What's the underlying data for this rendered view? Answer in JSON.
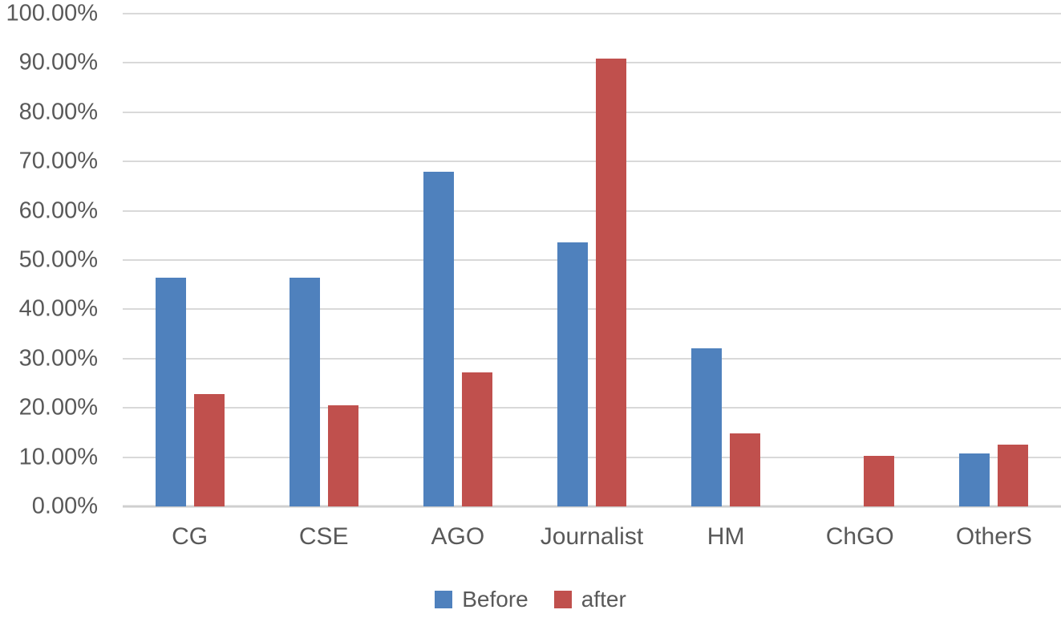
{
  "chart_data": {
    "type": "bar",
    "categories": [
      "CG",
      "CSE",
      "AGO",
      "Journalist",
      "HM",
      "ChGO",
      "OtherS"
    ],
    "series": [
      {
        "name": "Before",
        "color": "#4F81BD",
        "values": [
          46.43,
          46.43,
          67.86,
          53.57,
          32.14,
          0,
          10.71
        ]
      },
      {
        "name": "after",
        "color": "#C0504D",
        "values": [
          22.73,
          20.45,
          27.27,
          90.91,
          14.77,
          10.23,
          12.5
        ]
      }
    ],
    "title": "",
    "xlabel": "",
    "ylabel": "",
    "ylim": [
      0,
      100
    ],
    "ytick_step": 10,
    "yticks": [
      "0.00%",
      "10.00%",
      "20.00%",
      "30.00%",
      "40.00%",
      "50.00%",
      "60.00%",
      "70.00%",
      "80.00%",
      "90.00%",
      "100.00%"
    ],
    "grid": true,
    "legend_position": "bottom"
  },
  "colors": {
    "text": "#595959",
    "gridline": "#D9D9D9",
    "axis_line": "#CFCFCF",
    "background": "#FFFFFF",
    "series_before": "#4F81BD",
    "series_after": "#C0504D"
  }
}
